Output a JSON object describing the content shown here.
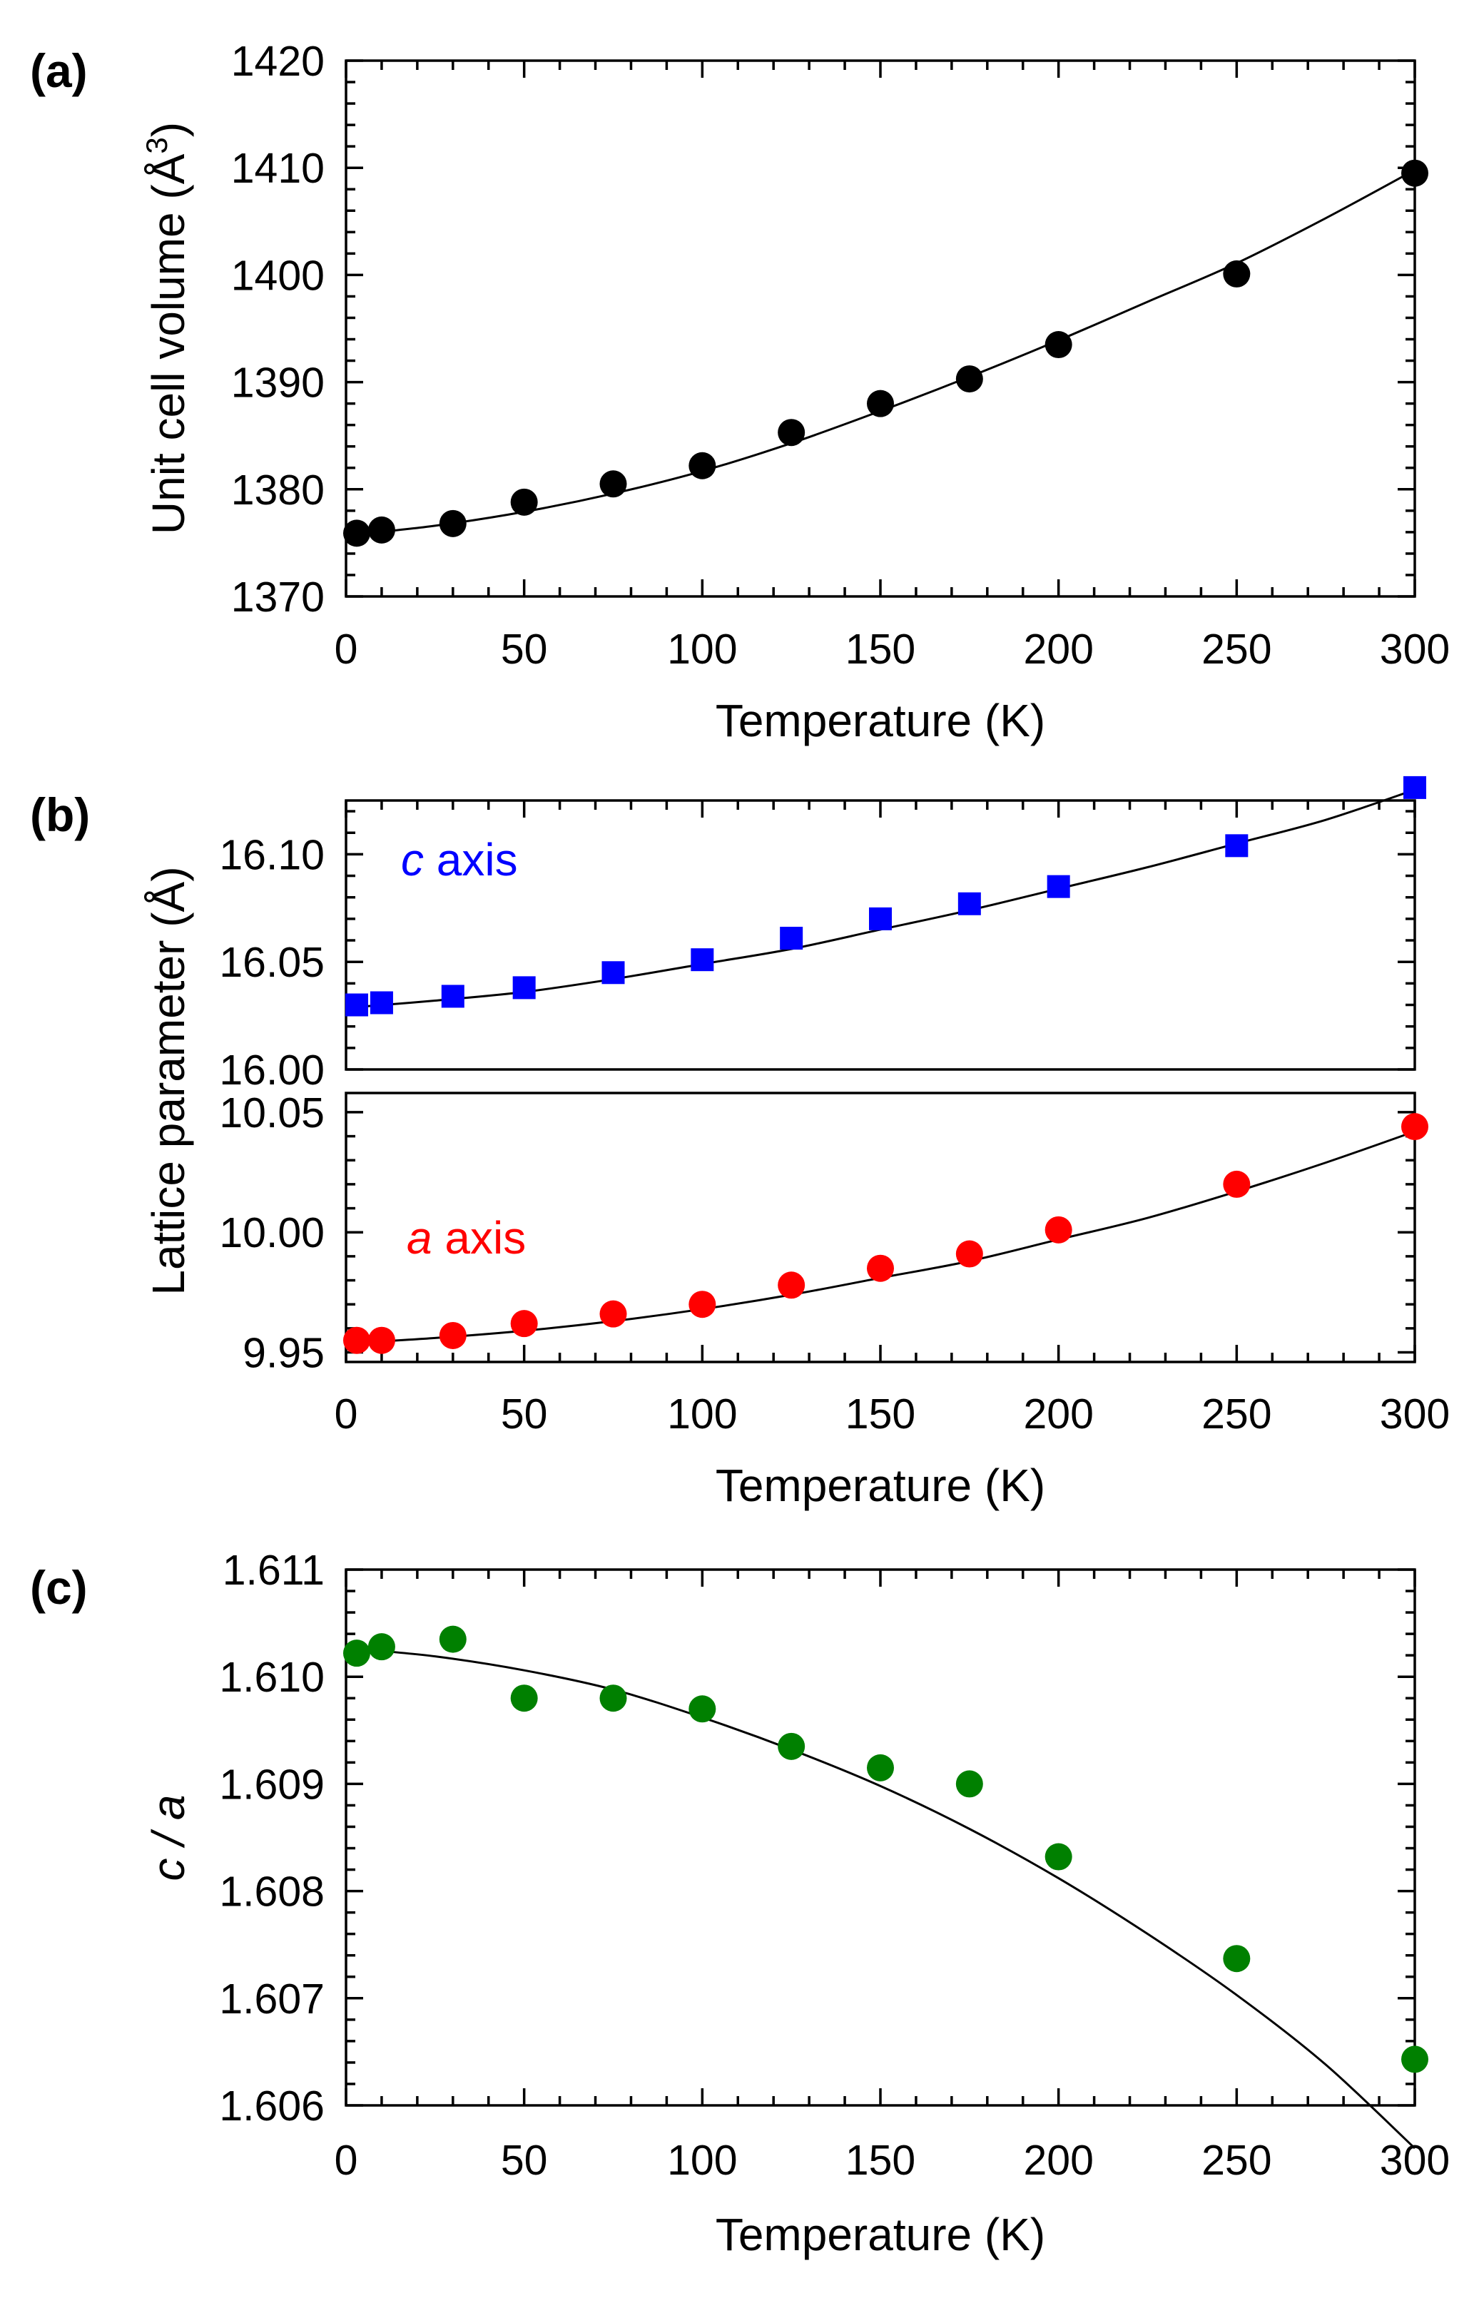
{
  "chart_data": [
    {
      "type": "scatter",
      "panel_label": "(a)",
      "xlabel": "Temperature (K)",
      "ylabel": "Unit cell volume (Å",
      "ylabel_sup": "3",
      "ylabel_close": ")",
      "xlim": [
        0,
        300
      ],
      "ylim": [
        1370,
        1420
      ],
      "xticks": [
        0,
        50,
        100,
        150,
        200,
        250,
        300
      ],
      "yticks": [
        1370,
        1380,
        1390,
        1400,
        1410,
        1420
      ],
      "ytick_decimals": 0,
      "series": [
        {
          "marker": "circle",
          "color": "#000000",
          "x": [
            3,
            10,
            30,
            50,
            75,
            100,
            125,
            150,
            175,
            200,
            250,
            300
          ],
          "y": [
            1375.9,
            1376.2,
            1376.8,
            1378.8,
            1380.5,
            1382.2,
            1385.3,
            1388.0,
            1390.3,
            1393.5,
            1400.1,
            1409.5
          ],
          "fit": [
            [
              3,
              1375.8
            ],
            [
              25,
              1376.6
            ],
            [
              50,
              1377.9
            ],
            [
              75,
              1379.6
            ],
            [
              100,
              1381.7
            ],
            [
              125,
              1384.3
            ],
            [
              150,
              1387.3
            ],
            [
              175,
              1390.5
            ],
            [
              200,
              1393.9
            ],
            [
              225,
              1397.5
            ],
            [
              250,
              1401.1
            ],
            [
              275,
              1405.3
            ],
            [
              300,
              1409.8
            ]
          ]
        }
      ]
    },
    {
      "type": "scatter",
      "panel_label": "(b)",
      "xlabel": "Temperature (K)",
      "ylabel": "Lattice parameter (Å)",
      "xlim": [
        0,
        300
      ],
      "xticks": [
        0,
        50,
        100,
        150,
        200,
        250,
        300
      ],
      "broken_y_axis": true,
      "segments": [
        {
          "ylim": [
            16.0,
            16.125
          ],
          "yticks": [
            16.0,
            16.05,
            16.1
          ],
          "ytick_decimals": 2,
          "series": [
            {
              "name": "c axis",
              "name_italic": "c",
              "name_rest": " axis",
              "marker": "square",
              "color": "#0000ff",
              "x": [
                3,
                10,
                30,
                50,
                75,
                100,
                125,
                150,
                175,
                200,
                250,
                300
              ],
              "y": [
                16.03,
                16.031,
                16.034,
                16.038,
                16.045,
                16.051,
                16.061,
                16.07,
                16.077,
                16.085,
                16.104,
                16.131
              ],
              "fit": [
                [
                  3,
                  16.029
                ],
                [
                  25,
                  16.032
                ],
                [
                  50,
                  16.036
                ],
                [
                  75,
                  16.042
                ],
                [
                  100,
                  16.049
                ],
                [
                  125,
                  16.056
                ],
                [
                  150,
                  16.065
                ],
                [
                  175,
                  16.074
                ],
                [
                  200,
                  16.084
                ],
                [
                  225,
                  16.094
                ],
                [
                  250,
                  16.105
                ],
                [
                  275,
                  16.116
                ],
                [
                  300,
                  16.13
                ]
              ]
            }
          ]
        },
        {
          "ylim": [
            9.946,
            10.058
          ],
          "yticks": [
            9.95,
            10.0,
            10.05
          ],
          "ytick_decimals": 2,
          "series": [
            {
              "name": "a axis",
              "name_italic": "a",
              "name_rest": " axis",
              "marker": "circle",
              "color": "#ff0000",
              "x": [
                3,
                10,
                30,
                50,
                75,
                100,
                125,
                150,
                175,
                200,
                250,
                300
              ],
              "y": [
                9.955,
                9.955,
                9.957,
                9.962,
                9.966,
                9.97,
                9.978,
                9.985,
                9.991,
                10.001,
                10.02,
                10.044
              ],
              "fit": [
                [
                  3,
                  9.954
                ],
                [
                  25,
                  9.956
                ],
                [
                  50,
                  9.959
                ],
                [
                  75,
                  9.963
                ],
                [
                  100,
                  9.968
                ],
                [
                  125,
                  9.974
                ],
                [
                  150,
                  9.981
                ],
                [
                  175,
                  9.988
                ],
                [
                  200,
                  9.997
                ],
                [
                  225,
                  10.006
                ],
                [
                  250,
                  10.017
                ],
                [
                  275,
                  10.029
                ],
                [
                  300,
                  10.042
                ]
              ]
            }
          ]
        }
      ]
    },
    {
      "type": "scatter",
      "panel_label": "(c)",
      "xlabel": "Temperature (K)",
      "ylabel": "c / a",
      "xlim": [
        0,
        300
      ],
      "ylim": [
        1.606,
        1.611
      ],
      "xticks": [
        0,
        50,
        100,
        150,
        200,
        250,
        300
      ],
      "yticks": [
        1.606,
        1.607,
        1.608,
        1.609,
        1.61,
        1.611
      ],
      "ytick_decimals": 3,
      "series": [
        {
          "marker": "circle",
          "color": "#008000",
          "x": [
            3,
            10,
            30,
            50,
            75,
            100,
            125,
            150,
            175,
            200,
            250,
            300
          ],
          "y": [
            1.61022,
            1.61028,
            1.61035,
            1.6098,
            1.6098,
            1.6097,
            1.60935,
            1.60915,
            1.609,
            1.60832,
            1.60737,
            1.60643
          ],
          "fit": [
            [
              3,
              1.61026
            ],
            [
              25,
              1.61019
            ],
            [
              50,
              1.61006
            ],
            [
              75,
              1.60988
            ],
            [
              100,
              1.60962
            ],
            [
              125,
              1.60932
            ],
            [
              150,
              1.60898
            ],
            [
              175,
              1.60858
            ],
            [
              200,
              1.60812
            ],
            [
              225,
              1.6076
            ],
            [
              250,
              1.60703
            ],
            [
              275,
              1.60638
            ],
            [
              300,
              1.6056
            ]
          ]
        }
      ]
    }
  ]
}
